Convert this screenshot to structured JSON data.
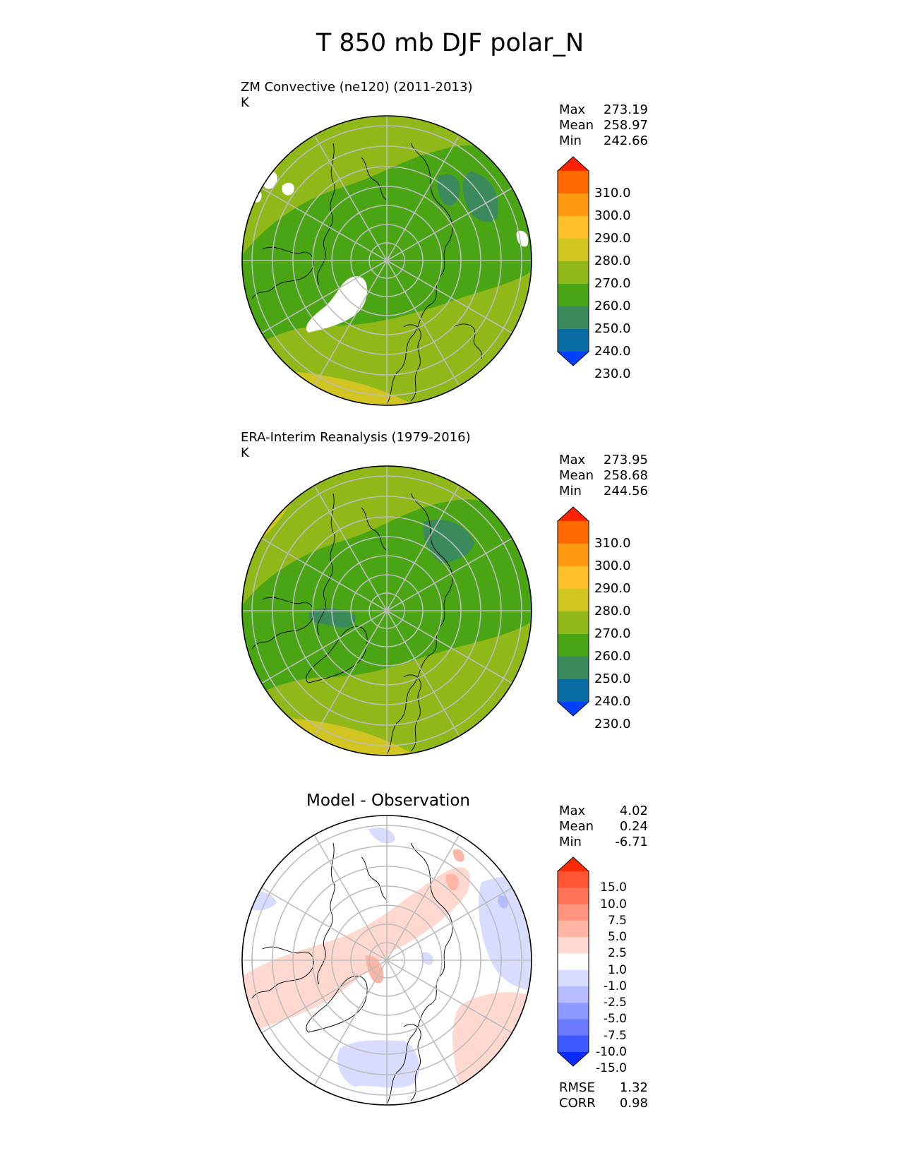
{
  "title": "T 850 mb DJF polar_N",
  "panels": [
    {
      "name": "test",
      "title_line1": "ZM Convective (ne120) (2011-2013)",
      "title_line2": "K",
      "stats": {
        "max_label": "Max",
        "max": "273.19",
        "mean_label": "Mean",
        "mean": "258.97",
        "min_label": "Min",
        "min": "242.66"
      },
      "colorbar": {
        "levels": [
          "310.0",
          "300.0",
          "290.0",
          "280.0",
          "270.0",
          "260.0",
          "250.0",
          "240.0",
          "230.0"
        ],
        "colors": [
          "#ff2200",
          "#ff6a00",
          "#ff9a10",
          "#ffc02a",
          "#d2c521",
          "#90b818",
          "#4aa515",
          "#3a8a5c",
          "#0a6ea5",
          "#0040ff"
        ]
      }
    },
    {
      "name": "reference",
      "title_line1": "ERA-Interim Reanalysis (1979-2016)",
      "title_line2": "K",
      "stats": {
        "max_label": "Max",
        "max": "273.95",
        "mean_label": "Mean",
        "mean": "258.68",
        "min_label": "Min",
        "min": "244.56"
      },
      "colorbar": {
        "levels": [
          "310.0",
          "300.0",
          "290.0",
          "280.0",
          "270.0",
          "260.0",
          "250.0",
          "240.0",
          "230.0"
        ],
        "colors": [
          "#ff2200",
          "#ff6a00",
          "#ff9a10",
          "#ffc02a",
          "#d2c521",
          "#90b818",
          "#4aa515",
          "#3a8a5c",
          "#0a6ea5",
          "#0040ff"
        ]
      }
    },
    {
      "name": "difference",
      "title_line1": "Model - Observation",
      "stats": {
        "max_label": "Max",
        "max": "4.02",
        "mean_label": "Mean",
        "mean": "0.24",
        "min_label": "Min",
        "min": "-6.71"
      },
      "colorbar": {
        "levels": [
          "15.0",
          "10.0",
          "7.5",
          "5.0",
          "2.5",
          "1.0",
          "-1.0",
          "-2.5",
          "-5.0",
          "-7.5",
          "-10.0",
          "-15.0"
        ],
        "colors": [
          "#ff2a00",
          "#ff5533",
          "#ff7358",
          "#ff9480",
          "#ffb4a4",
          "#ffd8d0",
          "#ffffff",
          "#d8dcff",
          "#b5bcff",
          "#8e9aff",
          "#6a7bff",
          "#3e58ff",
          "#0a2cff"
        ]
      },
      "metrics": {
        "rmse_label": "RMSE",
        "rmse": "1.32",
        "corr_label": "CORR",
        "corr": "0.98"
      }
    }
  ],
  "map": {
    "projection": "north polar stereographic",
    "latitude_circles": 7,
    "meridians": 12
  }
}
